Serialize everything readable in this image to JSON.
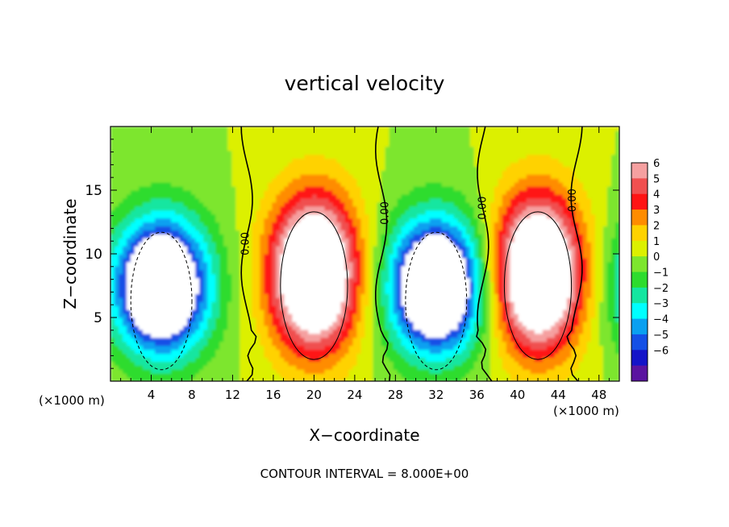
{
  "chart_data": {
    "type": "heatmap",
    "title": "vertical velocity",
    "xlabel": "X−coordinate",
    "ylabel": "Z−coordinate",
    "x_unit_left": "(×1000 m)",
    "x_unit_right": "(×1000 m)",
    "footer": "CONTOUR INTERVAL = 8.000E+00",
    "xlim": [
      0,
      50
    ],
    "ylim": [
      0,
      20
    ],
    "xticks": [
      4,
      8,
      12,
      16,
      20,
      24,
      28,
      32,
      36,
      40,
      44,
      48
    ],
    "xtick_labels": [
      "4",
      "8",
      "12",
      "16",
      "20",
      "24",
      "28",
      "32",
      "36",
      "40",
      "44",
      "48"
    ],
    "yticks": [
      5,
      10,
      15
    ],
    "ytick_labels": [
      "5",
      "10",
      "15"
    ],
    "colorbar": {
      "levels": [
        6,
        5,
        4,
        3,
        2,
        1,
        0,
        -1,
        -2,
        -3,
        -4,
        -5,
        -6
      ],
      "labels": [
        "6",
        "5",
        "4",
        "3",
        "2",
        "1",
        "0",
        "−1",
        "−2",
        "−3",
        "−4",
        "−5",
        "−6"
      ],
      "colors": [
        "#f5a0a0",
        "#f05050",
        "#ff1414",
        "#ff8c00",
        "#ffd200",
        "#dcf000",
        "#7de62d",
        "#2ddc2d",
        "#14e6a0",
        "#00ffff",
        "#0aa0f0",
        "#1450e6",
        "#1414c8",
        "#5a14a0"
      ]
    },
    "contour_labels": [
      "0.00",
      "0.00",
      "0.00",
      "0.00"
    ],
    "cells": [
      {
        "xc": 5,
        "r": -1
      },
      {
        "xc": 20,
        "r": 1
      },
      {
        "xc": 32,
        "r": -1
      },
      {
        "xc": 42,
        "r": 1
      }
    ],
    "zero_contour_x": [
      13.4,
      26.6,
      36.6,
      45.8
    ]
  }
}
